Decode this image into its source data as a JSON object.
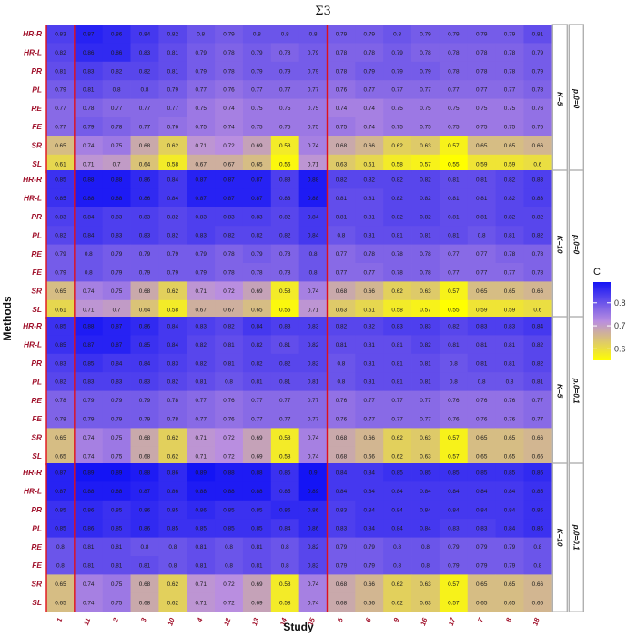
{
  "chart_data": {
    "type": "heatmap",
    "title": "Σ3",
    "xlabel": "Study",
    "ylabel": "Methods",
    "columns": [
      "1",
      "11",
      "2",
      "3",
      "10",
      "4",
      "12",
      "13",
      "14",
      "15",
      "5",
      "6",
      "9",
      "16",
      "17",
      "7",
      "8",
      "18"
    ],
    "rows": [
      "HR-R",
      "HR-L",
      "PR",
      "PL",
      "RE",
      "FE",
      "SR",
      "SL"
    ],
    "separators_after_columns": [
      "1",
      "15"
    ],
    "legend": {
      "title": "C",
      "ticks": [
        0.6,
        0.7,
        0.8
      ],
      "range": [
        0.55,
        0.89
      ],
      "low_color": "#ffff00",
      "mid_color": "#b98ee0",
      "high_color": "#1414f5"
    },
    "panels": [
      {
        "strip_k": "K=5",
        "strip_p": "p.0=0",
        "values": [
          [
            0.83,
            0.87,
            0.86,
            0.84,
            0.82,
            0.8,
            0.79,
            0.8,
            0.8,
            0.8,
            0.79,
            0.79,
            0.8,
            0.79,
            0.79,
            0.79,
            0.79,
            0.81
          ],
          [
            0.82,
            0.86,
            0.86,
            0.83,
            0.81,
            0.79,
            0.78,
            0.79,
            0.78,
            0.79,
            0.78,
            0.78,
            0.79,
            0.78,
            0.78,
            0.78,
            0.78,
            0.79
          ],
          [
            0.81,
            0.83,
            0.82,
            0.82,
            0.81,
            0.79,
            0.78,
            0.79,
            0.79,
            0.79,
            0.78,
            0.79,
            0.79,
            0.79,
            0.78,
            0.78,
            0.78,
            0.79
          ],
          [
            0.79,
            0.81,
            0.8,
            0.8,
            0.79,
            0.77,
            0.76,
            0.77,
            0.77,
            0.77,
            0.76,
            0.77,
            0.77,
            0.77,
            0.77,
            0.77,
            0.77,
            0.78
          ],
          [
            0.77,
            0.78,
            0.77,
            0.77,
            0.77,
            0.75,
            0.74,
            0.75,
            0.75,
            0.75,
            0.74,
            0.74,
            0.75,
            0.75,
            0.75,
            0.75,
            0.75,
            0.76
          ],
          [
            0.77,
            0.79,
            0.78,
            0.77,
            0.76,
            0.75,
            0.74,
            0.75,
            0.75,
            0.75,
            0.75,
            0.74,
            0.75,
            0.75,
            0.75,
            0.75,
            0.75,
            0.76
          ],
          [
            0.65,
            0.74,
            0.75,
            0.68,
            0.62,
            0.71,
            0.72,
            0.69,
            0.58,
            0.74,
            0.68,
            0.66,
            0.62,
            0.63,
            0.57,
            0.65,
            0.65,
            0.66
          ],
          [
            0.61,
            0.71,
            0.7,
            0.64,
            0.58,
            0.67,
            0.67,
            0.65,
            0.56,
            0.71,
            0.63,
            0.61,
            0.58,
            0.57,
            0.55,
            0.59,
            0.59,
            0.6
          ]
        ]
      },
      {
        "strip_k": "K=10",
        "strip_p": "p.0=0",
        "values": [
          [
            0.85,
            0.88,
            0.88,
            0.86,
            0.84,
            0.87,
            0.87,
            0.87,
            0.83,
            0.88,
            0.82,
            0.82,
            0.82,
            0.82,
            0.81,
            0.81,
            0.82,
            0.83
          ],
          [
            0.85,
            0.88,
            0.88,
            0.86,
            0.84,
            0.87,
            0.87,
            0.87,
            0.83,
            0.88,
            0.81,
            0.81,
            0.82,
            0.82,
            0.81,
            0.81,
            0.82,
            0.83
          ],
          [
            0.83,
            0.84,
            0.83,
            0.83,
            0.82,
            0.83,
            0.83,
            0.83,
            0.82,
            0.84,
            0.81,
            0.81,
            0.82,
            0.82,
            0.81,
            0.81,
            0.82,
            0.82
          ],
          [
            0.82,
            0.84,
            0.83,
            0.83,
            0.82,
            0.83,
            0.82,
            0.82,
            0.82,
            0.84,
            0.8,
            0.81,
            0.81,
            0.81,
            0.81,
            0.8,
            0.81,
            0.82
          ],
          [
            0.79,
            0.8,
            0.79,
            0.79,
            0.79,
            0.79,
            0.78,
            0.79,
            0.78,
            0.8,
            0.77,
            0.78,
            0.78,
            0.78,
            0.77,
            0.77,
            0.78,
            0.78
          ],
          [
            0.79,
            0.8,
            0.79,
            0.79,
            0.79,
            0.79,
            0.78,
            0.78,
            0.78,
            0.8,
            0.77,
            0.77,
            0.78,
            0.78,
            0.77,
            0.77,
            0.77,
            0.78
          ],
          [
            0.65,
            0.74,
            0.75,
            0.68,
            0.62,
            0.71,
            0.72,
            0.69,
            0.58,
            0.74,
            0.68,
            0.66,
            0.62,
            0.63,
            0.57,
            0.65,
            0.65,
            0.66
          ],
          [
            0.61,
            0.71,
            0.7,
            0.64,
            0.58,
            0.67,
            0.67,
            0.65,
            0.56,
            0.71,
            0.63,
            0.61,
            0.58,
            0.57,
            0.55,
            0.59,
            0.59,
            0.6
          ]
        ]
      },
      {
        "strip_k": "K=5",
        "strip_p": "p.0=0.1",
        "values": [
          [
            0.85,
            0.88,
            0.87,
            0.86,
            0.84,
            0.83,
            0.82,
            0.84,
            0.83,
            0.83,
            0.82,
            0.82,
            0.83,
            0.83,
            0.82,
            0.83,
            0.83,
            0.84
          ],
          [
            0.85,
            0.87,
            0.87,
            0.85,
            0.84,
            0.82,
            0.81,
            0.82,
            0.81,
            0.82,
            0.81,
            0.81,
            0.81,
            0.82,
            0.81,
            0.81,
            0.81,
            0.82
          ],
          [
            0.83,
            0.85,
            0.84,
            0.84,
            0.83,
            0.82,
            0.81,
            0.82,
            0.82,
            0.82,
            0.8,
            0.81,
            0.81,
            0.81,
            0.8,
            0.81,
            0.81,
            0.82
          ],
          [
            0.82,
            0.83,
            0.83,
            0.83,
            0.82,
            0.81,
            0.8,
            0.81,
            0.81,
            0.81,
            0.8,
            0.81,
            0.81,
            0.81,
            0.8,
            0.8,
            0.8,
            0.81
          ],
          [
            0.78,
            0.79,
            0.79,
            0.79,
            0.78,
            0.77,
            0.76,
            0.77,
            0.77,
            0.77,
            0.76,
            0.77,
            0.77,
            0.77,
            0.76,
            0.76,
            0.76,
            0.77
          ],
          [
            0.78,
            0.79,
            0.79,
            0.79,
            0.78,
            0.77,
            0.76,
            0.77,
            0.77,
            0.77,
            0.76,
            0.77,
            0.77,
            0.77,
            0.76,
            0.76,
            0.76,
            0.77
          ],
          [
            0.65,
            0.74,
            0.75,
            0.68,
            0.62,
            0.71,
            0.72,
            0.69,
            0.58,
            0.74,
            0.68,
            0.66,
            0.62,
            0.63,
            0.57,
            0.65,
            0.65,
            0.66
          ],
          [
            0.65,
            0.74,
            0.75,
            0.68,
            0.62,
            0.71,
            0.72,
            0.69,
            0.58,
            0.74,
            0.68,
            0.66,
            0.62,
            0.63,
            0.57,
            0.65,
            0.65,
            0.66
          ]
        ]
      },
      {
        "strip_k": "K=10",
        "strip_p": "p.0=0.1",
        "values": [
          [
            0.87,
            0.89,
            0.89,
            0.88,
            0.86,
            0.89,
            0.88,
            0.88,
            0.85,
            0.9,
            0.84,
            0.84,
            0.85,
            0.85,
            0.85,
            0.85,
            0.85,
            0.86
          ],
          [
            0.87,
            0.88,
            0.88,
            0.87,
            0.86,
            0.88,
            0.88,
            0.88,
            0.85,
            0.89,
            0.84,
            0.84,
            0.84,
            0.84,
            0.84,
            0.84,
            0.84,
            0.85
          ],
          [
            0.85,
            0.86,
            0.85,
            0.86,
            0.85,
            0.86,
            0.85,
            0.85,
            0.86,
            0.86,
            0.83,
            0.84,
            0.84,
            0.84,
            0.84,
            0.84,
            0.84,
            0.85
          ],
          [
            0.85,
            0.86,
            0.85,
            0.86,
            0.85,
            0.85,
            0.85,
            0.85,
            0.84,
            0.86,
            0.83,
            0.84,
            0.84,
            0.84,
            0.83,
            0.83,
            0.84,
            0.85
          ],
          [
            0.8,
            0.81,
            0.81,
            0.8,
            0.8,
            0.81,
            0.8,
            0.81,
            0.8,
            0.82,
            0.79,
            0.79,
            0.8,
            0.8,
            0.79,
            0.79,
            0.79,
            0.8
          ],
          [
            0.8,
            0.81,
            0.81,
            0.81,
            0.8,
            0.81,
            0.8,
            0.81,
            0.8,
            0.82,
            0.79,
            0.79,
            0.8,
            0.8,
            0.79,
            0.79,
            0.79,
            0.8
          ],
          [
            0.65,
            0.74,
            0.75,
            0.68,
            0.62,
            0.71,
            0.72,
            0.69,
            0.58,
            0.74,
            0.68,
            0.66,
            0.62,
            0.63,
            0.57,
            0.65,
            0.65,
            0.66
          ],
          [
            0.65,
            0.74,
            0.75,
            0.68,
            0.62,
            0.71,
            0.72,
            0.69,
            0.58,
            0.74,
            0.68,
            0.66,
            0.62,
            0.63,
            0.57,
            0.65,
            0.65,
            0.66
          ]
        ]
      }
    ]
  }
}
